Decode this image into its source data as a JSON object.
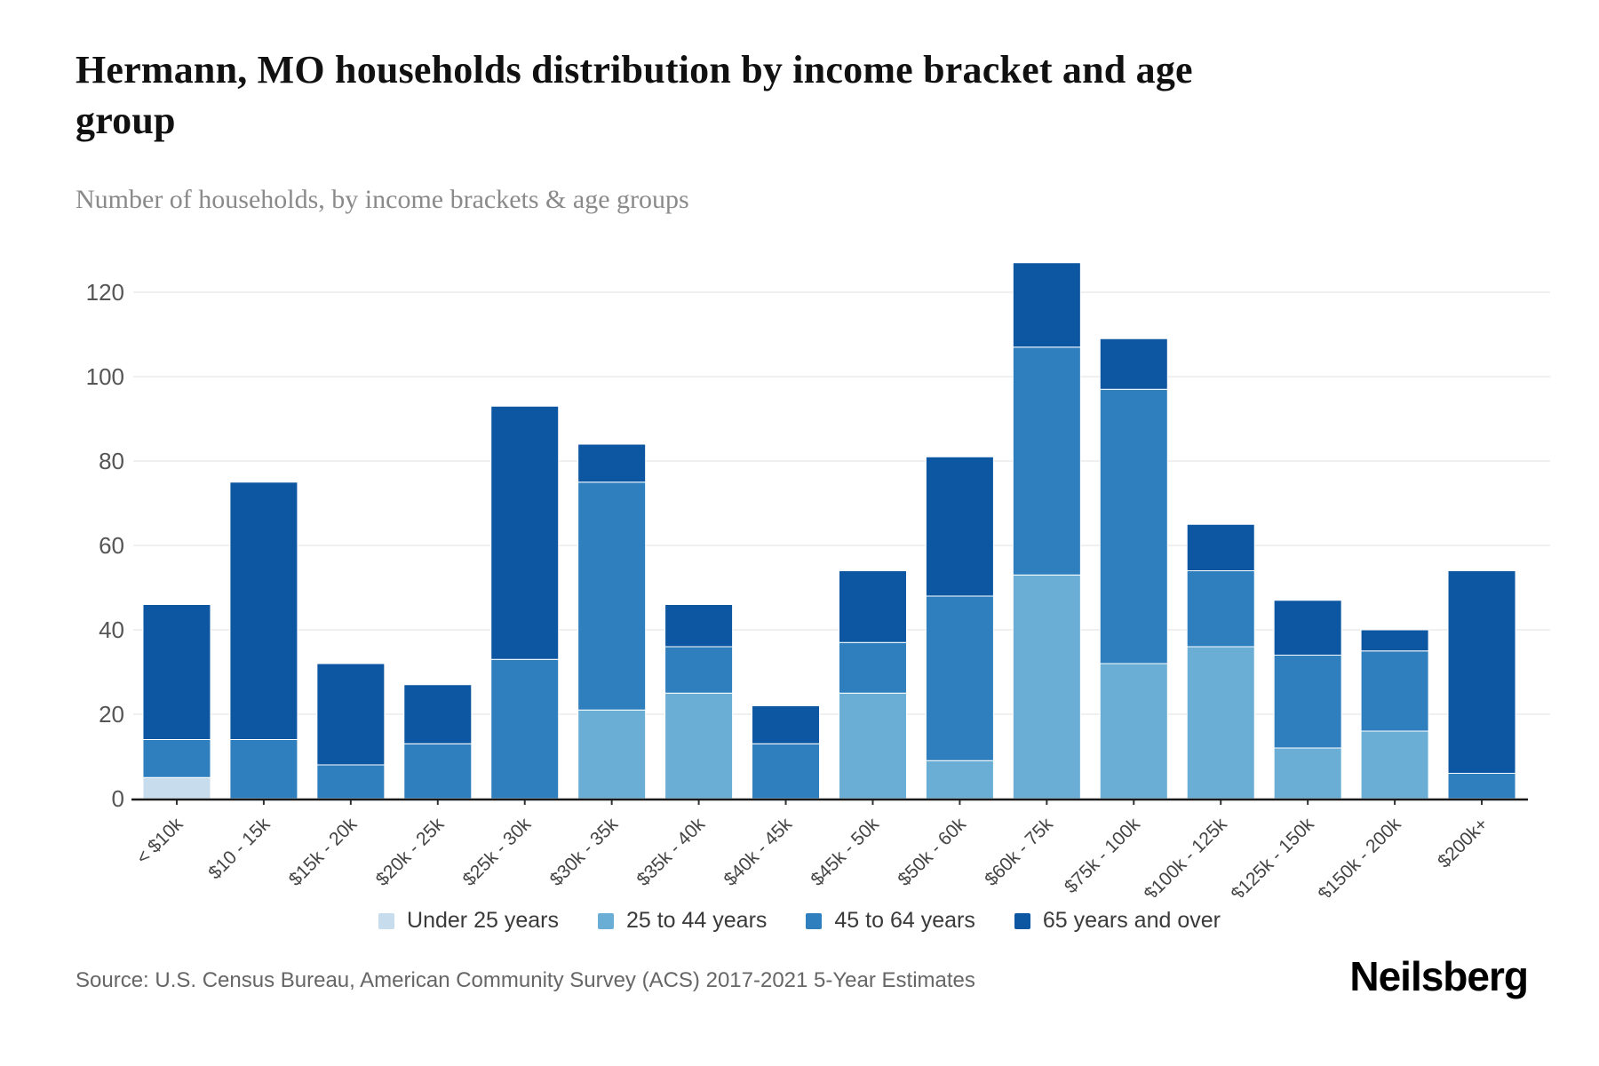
{
  "page": {
    "title": "Hermann, MO households distribution by income bracket and age group",
    "subtitle": "Number of households, by income brackets & age groups"
  },
  "chart_data": {
    "type": "bar",
    "stacked": true,
    "title": "Hermann, MO households distribution by income bracket and age group",
    "subtitle": "Number of households, by income brackets & age groups",
    "xlabel": "",
    "ylabel": "",
    "ylim": [
      0,
      120
    ],
    "ytick_step": 20,
    "yticks": [
      0,
      20,
      40,
      60,
      80,
      100,
      120
    ],
    "grid": true,
    "legend_position": "bottom",
    "categories": [
      "< $10k",
      "$10 - 15k",
      "$15k - 20k",
      "$20k - 25k",
      "$25k - 30k",
      "$30k - 35k",
      "$35k - 40k",
      "$40k - 45k",
      "$45k - 50k",
      "$50k - 60k",
      "$60k - 75k",
      "$75k - 100k",
      "$100k - 125k",
      "$125k - 150k",
      "$150k - 200k",
      "$200k+"
    ],
    "series": [
      {
        "name": "Under 25 years",
        "color": "#c7dcec",
        "values": [
          5,
          0,
          0,
          0,
          0,
          0,
          0,
          0,
          0,
          0,
          0,
          0,
          0,
          0,
          0,
          0
        ]
      },
      {
        "name": "25 to 44 years",
        "color": "#6aaed6",
        "values": [
          0,
          0,
          0,
          0,
          0,
          21,
          25,
          0,
          25,
          9,
          53,
          32,
          36,
          12,
          16,
          0
        ]
      },
      {
        "name": "45 to 64 years",
        "color": "#2f7ebd",
        "values": [
          9,
          14,
          8,
          13,
          33,
          54,
          11,
          13,
          12,
          39,
          54,
          65,
          18,
          22,
          19,
          6
        ]
      },
      {
        "name": "65 years and over",
        "color": "#0d56a1",
        "values": [
          32,
          61,
          24,
          14,
          60,
          9,
          10,
          9,
          17,
          33,
          20,
          12,
          11,
          13,
          5,
          48
        ]
      }
    ],
    "totals": [
      46,
      75,
      32,
      27,
      93,
      84,
      46,
      22,
      54,
      81,
      127,
      109,
      65,
      47,
      40,
      54
    ]
  },
  "footer": {
    "source": "Source: U.S. Census Bureau, American Community Survey (ACS) 2017-2021 5-Year Estimates",
    "brand": "Neilsberg"
  }
}
